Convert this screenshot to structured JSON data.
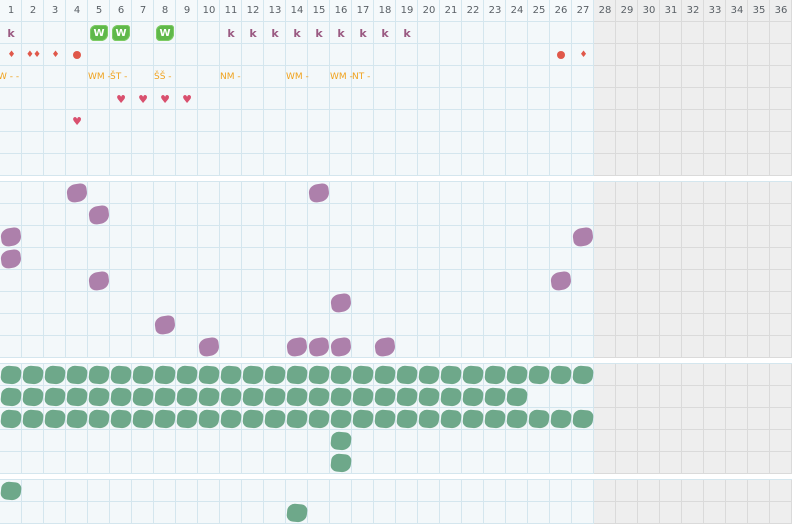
{
  "day_numbers": [
    "1",
    "2",
    "3",
    "4",
    "5",
    "6",
    "7",
    "8",
    "9",
    "10",
    "11",
    "12",
    "13",
    "14",
    "15",
    "16",
    "17",
    "18",
    "19",
    "20",
    "21",
    "22",
    "23",
    "24",
    "25",
    "26",
    "27",
    "28",
    "29",
    "30",
    "31",
    "32",
    "33",
    "34",
    "35",
    "36"
  ],
  "active_days": 27,
  "colors": {
    "grid_bg": "#f3f8fa",
    "grid_line": "#d4e6ee",
    "inactive_bg": "#eeeeee",
    "w_badge": "#5fb84a",
    "k_mark": "#9a5a82",
    "drop": "#e0584a",
    "heart": "#d9506e",
    "tag": "#f0a21e",
    "purple_blob": "#ad80ab",
    "green_blob": "#6ea88a"
  },
  "top_section": {
    "w_badges": {
      "days": [
        5,
        6,
        8
      ],
      "label": "W",
      "icon": "w-badge-icon"
    },
    "k_marks": {
      "days": [
        1,
        11,
        12,
        13,
        14,
        15,
        16,
        17,
        18,
        19
      ],
      "label": "k"
    },
    "drop_marks": [
      {
        "day": 1,
        "count": 1,
        "icon": "drop-icon"
      },
      {
        "day": 2,
        "count": 2,
        "icon": "drop-icon"
      },
      {
        "day": 3,
        "count": 1,
        "icon": "drop-icon"
      },
      {
        "day": 27,
        "count": 1,
        "icon": "drop-icon"
      }
    ],
    "dot_marks": {
      "days": [
        4,
        26
      ],
      "icon": "dot-icon"
    },
    "tags": [
      {
        "day": 1,
        "text": "W -  -"
      },
      {
        "day": 5,
        "text": "WM -"
      },
      {
        "day": 6,
        "text": "ŠT -"
      },
      {
        "day": 8,
        "text": "ŠŠ -"
      },
      {
        "day": 11,
        "text": "NM -"
      },
      {
        "day": 14,
        "text": "WM -"
      },
      {
        "day": 16,
        "text": "WM -"
      },
      {
        "day": 17,
        "text": "NT -"
      }
    ],
    "hearts": [
      {
        "day": 6,
        "row": 0
      },
      {
        "day": 7,
        "row": 0
      },
      {
        "day": 8,
        "row": 0
      },
      {
        "day": 9,
        "row": 0
      },
      {
        "day": 4,
        "row": 1
      }
    ]
  },
  "purple_section": {
    "blobs": [
      {
        "day": 4,
        "row": 0
      },
      {
        "day": 15,
        "row": 0
      },
      {
        "day": 5,
        "row": 1
      },
      {
        "day": 1,
        "row": 2
      },
      {
        "day": 27,
        "row": 2
      },
      {
        "day": 1,
        "row": 3
      },
      {
        "day": 5,
        "row": 4
      },
      {
        "day": 26,
        "row": 4
      },
      {
        "day": 16,
        "row": 5
      },
      {
        "day": 8,
        "row": 6
      },
      {
        "day": 10,
        "row": 7
      },
      {
        "day": 14,
        "row": 7
      },
      {
        "day": 15,
        "row": 7
      },
      {
        "day": 16,
        "row": 7
      },
      {
        "day": 18,
        "row": 7
      }
    ]
  },
  "green_section": {
    "rows": [
      {
        "row": 0,
        "from": 1,
        "to": 27
      },
      {
        "row": 1,
        "from": 1,
        "to": 24
      },
      {
        "row": 2,
        "from": 1,
        "to": 27
      }
    ],
    "extra": [
      {
        "day": 16,
        "row": 3
      },
      {
        "day": 16,
        "row": 4
      }
    ]
  },
  "bottom_section": {
    "blobs": [
      {
        "day": 1,
        "row": 0
      },
      {
        "day": 14,
        "row": 1
      }
    ]
  }
}
